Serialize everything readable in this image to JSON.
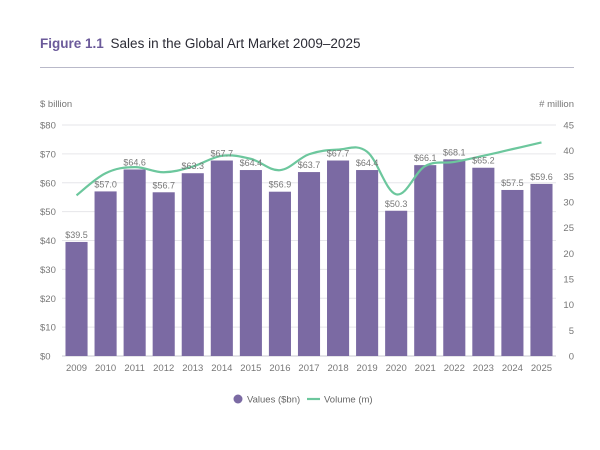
{
  "header": {
    "figure_label": "Figure 1.1",
    "title_text": "Sales in the Global Art Market 2009–2025"
  },
  "colors": {
    "bar": "#7b6aa3",
    "line": "#6cc79d",
    "grid": "#e6e6ea"
  },
  "chart_data": {
    "type": "bar",
    "title": "Figure 1.1 Sales in the Global Art Market 2009–2025",
    "left_axis_title": "$ billion",
    "right_axis_title": "# million",
    "categories": [
      "2009",
      "2010",
      "2011",
      "2012",
      "2013",
      "2014",
      "2015",
      "2016",
      "2017",
      "2018",
      "2019",
      "2020",
      "2021",
      "2022",
      "2023",
      "2024",
      "2025"
    ],
    "y_left": {
      "min": 0,
      "max": 80,
      "step": 10,
      "prefix": "$"
    },
    "y_right": {
      "min": 0,
      "max": 45,
      "step": 5
    },
    "series": [
      {
        "name": "Values ($bn)",
        "type": "bar",
        "axis": "left",
        "values": [
          39.5,
          57.0,
          64.6,
          56.7,
          63.3,
          67.7,
          64.4,
          56.9,
          63.7,
          67.7,
          64.4,
          50.3,
          66.1,
          68.1,
          65.2,
          57.5,
          59.6
        ],
        "labels": [
          "$39.5",
          "$57.0",
          "$64.6",
          "$56.7",
          "$63.3",
          "$67.7",
          "$64.4",
          "$56.9",
          "$63.7",
          "$67.7",
          "$64.4",
          "$50.3",
          "$66.1",
          "$68.1",
          "$65.2",
          "$57.5",
          "$59.6"
        ]
      },
      {
        "name": "Volume (m)",
        "type": "line",
        "axis": "right",
        "values": [
          31.3,
          35.6,
          36.8,
          35.8,
          36.9,
          39.0,
          38.4,
          36.2,
          39.3,
          40.2,
          39.8,
          31.5,
          37.0,
          37.8,
          39.0,
          40.3,
          41.6
        ]
      }
    ],
    "legend_position": "bottom-center",
    "grid": true
  }
}
